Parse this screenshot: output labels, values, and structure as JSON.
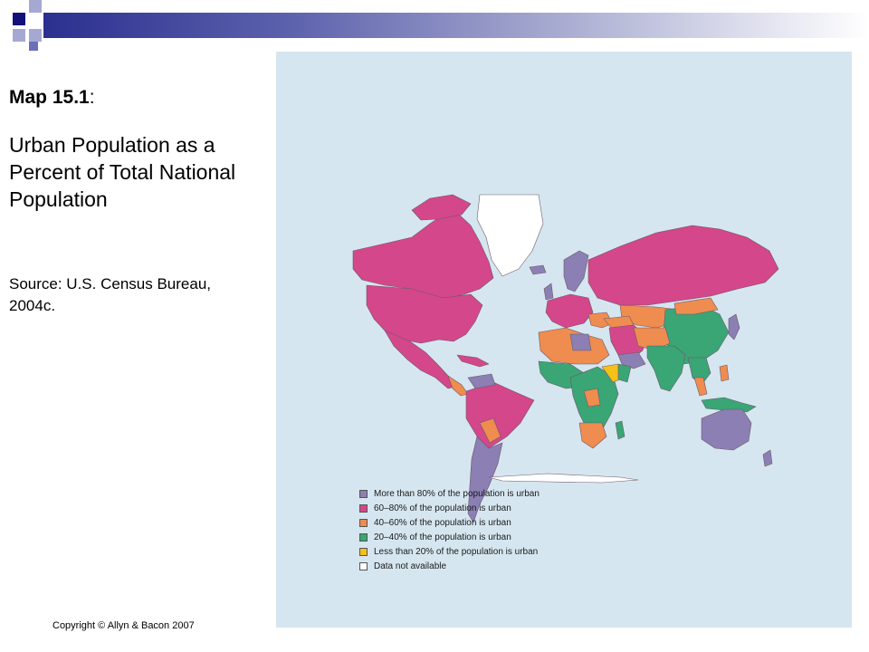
{
  "slide": {
    "title_number": "Map 15.1",
    "title_suffix": ":",
    "subtitle": "Urban Population as a Percent of Total National Population",
    "source": "Source: U.S. Census Bureau, 2004c.",
    "copyright": "Copyright © Allyn & Bacon 2007",
    "accent_colors": {
      "header_dark": "#12127a",
      "header_light": "#a6a8d4",
      "ocean": "#d6e6f0"
    }
  },
  "map": {
    "categories": [
      {
        "label": "More than 80% of the population is urban",
        "color": "#8b7fb3"
      },
      {
        "label": "60–80% of the population is urban",
        "color": "#d4478a"
      },
      {
        "label": "40–60% of the population is urban",
        "color": "#ef8c4f"
      },
      {
        "label": "20–40% of the population is urban",
        "color": "#3aa575"
      },
      {
        "label": "Less than 20% of the population is urban",
        "color": "#f5c018"
      },
      {
        "label": "Data not available",
        "color": "#ffffff"
      }
    ]
  }
}
